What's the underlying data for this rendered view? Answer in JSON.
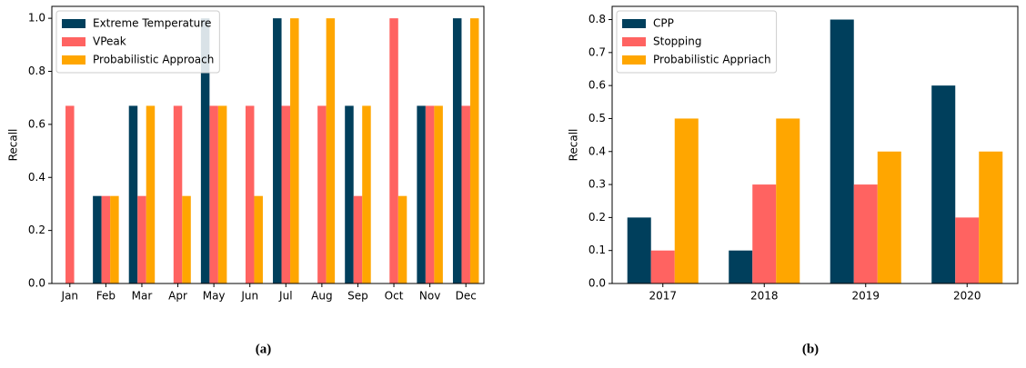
{
  "chart_data": [
    {
      "type": "bar",
      "caption": "(a)",
      "ylabel": "Recall",
      "categories": [
        "Jan",
        "Feb",
        "Mar",
        "Apr",
        "May",
        "Jun",
        "Jul",
        "Aug",
        "Sep",
        "Oct",
        "Nov",
        "Dec"
      ],
      "series": [
        {
          "name": "Extreme Temperature",
          "color": "#003f5c",
          "values": [
            0,
            0.33,
            0.67,
            0,
            1.0,
            0,
            1.0,
            0,
            0.67,
            0,
            0.67,
            1.0
          ]
        },
        {
          "name": "VPeak",
          "color": "#ff6361",
          "values": [
            0.67,
            0.33,
            0.33,
            0.67,
            0.67,
            0.67,
            0.67,
            0.67,
            0.33,
            1.0,
            0.67,
            0.67
          ]
        },
        {
          "name": "Probabilistic Approach",
          "color": "#ffa600",
          "values": [
            0,
            0.33,
            0.67,
            0.33,
            0.67,
            0.33,
            1.0,
            1.0,
            0.67,
            0.33,
            0.67,
            1.0
          ]
        }
      ],
      "ylim": [
        0,
        1.045
      ],
      "yticks": [
        {
          "value": 0,
          "label": "0.0"
        },
        0.2,
        0.4,
        0.6,
        0.8,
        {
          "value": 1,
          "label": "1.0"
        }
      ],
      "legend": "upper left"
    },
    {
      "type": "bar",
      "caption": "(b)",
      "ylabel": "Recall",
      "categories": [
        "2017",
        "2018",
        "2019",
        "2020"
      ],
      "series": [
        {
          "name": "CPP",
          "color": "#003f5c",
          "values": [
            0.2,
            0.1,
            0.8,
            0.6
          ]
        },
        {
          "name": "Stopping",
          "color": "#ff6361",
          "values": [
            0.1,
            0.3,
            0.3,
            0.2
          ]
        },
        {
          "name": "Probabilistic Appriach",
          "color": "#ffa600",
          "values": [
            0.5,
            0.5,
            0.4,
            0.4
          ]
        }
      ],
      "ylim": [
        0,
        0.84
      ],
      "yticks": [
        {
          "value": 0,
          "label": "0.0"
        },
        0.1,
        0.2,
        0.3,
        0.4,
        0.5,
        0.6,
        0.7,
        0.8
      ],
      "legend": "upper left"
    }
  ]
}
